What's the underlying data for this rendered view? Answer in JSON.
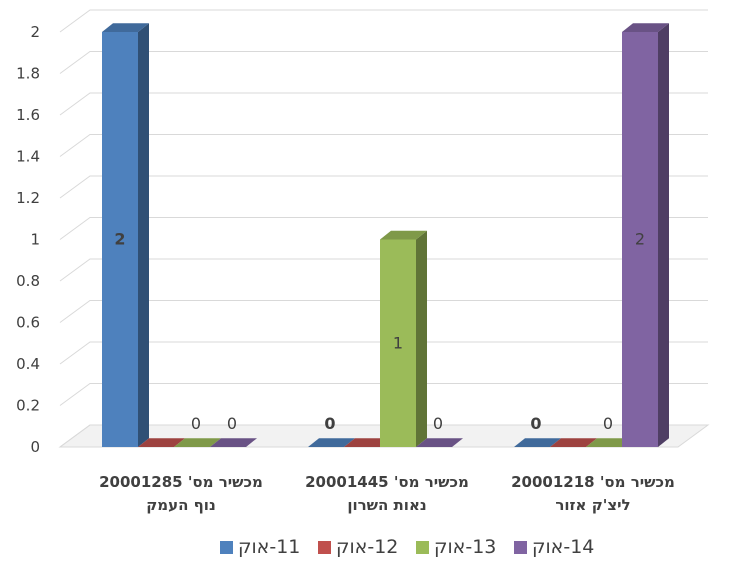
{
  "chart_data": {
    "type": "bar",
    "title": "",
    "xlabel": "",
    "ylabel": "",
    "ylim": [
      0,
      2
    ],
    "y_ticks": [
      "0",
      "0.2",
      "0.4",
      "0.6",
      "0.8",
      "1",
      "1.2",
      "1.4",
      "1.6",
      "1.8",
      "2"
    ],
    "grid": true,
    "legend_position": "bottom",
    "categories": [
      [
        "מכשיר מס' 20001285",
        "נוף העמק"
      ],
      [
        "מכשיר מס' 20001445",
        "נאות השרון"
      ],
      [
        "מכשיר מס' 20001218",
        "ליצ'ק אזור"
      ]
    ],
    "series": [
      {
        "name": "11-אוק",
        "color": "#4e81bd",
        "values": [
          2,
          0,
          0
        ],
        "labels": [
          "2",
          "0",
          "0"
        ],
        "bold_labels": [
          true,
          true,
          true
        ]
      },
      {
        "name": "12-אוק",
        "color": "#c0504d",
        "values": [
          0,
          0,
          0
        ],
        "labels": [
          "",
          "",
          ""
        ],
        "bold_labels": [
          false,
          false,
          false
        ]
      },
      {
        "name": "13-אוק",
        "color": "#9bbb59",
        "values": [
          0,
          1,
          0
        ],
        "labels": [
          "0",
          "1",
          "0"
        ],
        "bold_labels": [
          false,
          false,
          false
        ]
      },
      {
        "name": "14-אוק",
        "color": "#8064a2",
        "values": [
          0,
          0,
          2
        ],
        "labels": [
          "0",
          "0",
          "2"
        ],
        "bold_labels": [
          false,
          false,
          false
        ]
      }
    ]
  }
}
